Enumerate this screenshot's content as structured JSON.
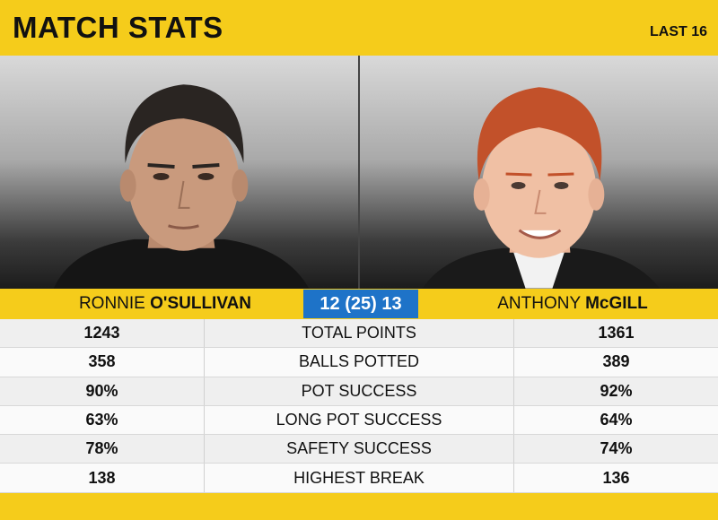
{
  "header": {
    "title": "MATCH STATS",
    "round": "LAST 16"
  },
  "players": {
    "left": {
      "first": "RONNIE",
      "last": "O'SULLIVAN"
    },
    "right": {
      "first": "ANTHONY",
      "last": "McGILL"
    }
  },
  "score": "12 (25) 13",
  "stats": [
    {
      "label": "TOTAL POINTS",
      "left": "1243",
      "right": "1361"
    },
    {
      "label": "BALLS POTTED",
      "left": "358",
      "right": "389"
    },
    {
      "label": "POT SUCCESS",
      "left": "90%",
      "right": "92%"
    },
    {
      "label": "LONG POT SUCCESS",
      "left": "63%",
      "right": "64%"
    },
    {
      "label": "SAFETY SUCCESS",
      "left": "78%",
      "right": "74%"
    },
    {
      "label": "HIGHEST BREAK",
      "left": "138",
      "right": "136"
    }
  ],
  "colors": {
    "accent": "#f5cc1b",
    "score_bg": "#1e73c8"
  }
}
